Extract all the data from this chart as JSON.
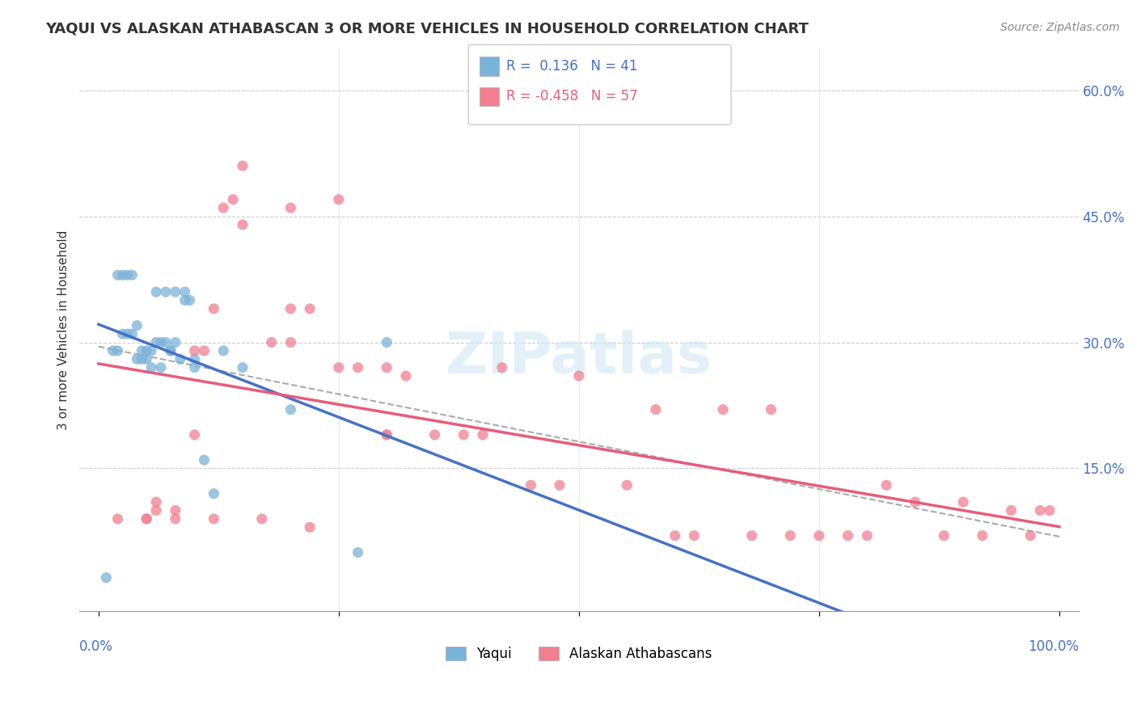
{
  "title": "YAQUI VS ALASKAN ATHABASCAN 3 OR MORE VEHICLES IN HOUSEHOLD CORRELATION CHART",
  "source": "Source: ZipAtlas.com",
  "ylabel": "3 or more Vehicles in Household",
  "yticks": [
    0.0,
    0.15,
    0.3,
    0.45,
    0.6
  ],
  "ytick_labels": [
    "",
    "15.0%",
    "30.0%",
    "45.0%",
    "60.0%"
  ],
  "yaqui_R": 0.136,
  "yaqui_N": 41,
  "athabascan_R": -0.458,
  "athabascan_N": 57,
  "yaqui_color": "#7ab3d9",
  "athabascan_color": "#f08090",
  "watermark_color": "#d0e8f5",
  "background_color": "#ffffff",
  "yaqui_x": [
    0.8,
    1.5,
    2.0,
    2.5,
    3.0,
    3.5,
    4.0,
    4.5,
    5.0,
    5.5,
    6.0,
    6.5,
    7.0,
    7.5,
    8.0,
    8.5,
    9.0,
    9.5,
    10.0,
    11.0,
    12.0,
    13.0,
    15.0,
    20.0,
    30.0,
    2.0,
    3.0,
    4.0,
    5.0,
    6.0,
    7.0,
    8.0,
    9.0,
    10.0,
    2.5,
    3.5,
    4.5,
    5.5,
    6.5,
    7.5,
    27.0
  ],
  "yaqui_y": [
    2.0,
    29.0,
    29.0,
    31.0,
    31.0,
    31.0,
    32.0,
    29.0,
    29.0,
    29.0,
    30.0,
    30.0,
    30.0,
    29.0,
    30.0,
    28.0,
    35.0,
    35.0,
    28.0,
    16.0,
    12.0,
    29.0,
    27.0,
    22.0,
    30.0,
    38.0,
    38.0,
    28.0,
    28.0,
    36.0,
    36.0,
    36.0,
    36.0,
    27.0,
    38.0,
    38.0,
    28.0,
    27.0,
    27.0,
    29.0,
    5.0
  ],
  "athabascan_x": [
    2.0,
    5.0,
    6.0,
    6.0,
    8.0,
    10.0,
    11.0,
    12.0,
    13.0,
    14.0,
    15.0,
    18.0,
    20.0,
    20.0,
    22.0,
    25.0,
    27.0,
    30.0,
    30.0,
    32.0,
    35.0,
    38.0,
    40.0,
    42.0,
    45.0,
    48.0,
    50.0,
    55.0,
    58.0,
    60.0,
    62.0,
    65.0,
    68.0,
    70.0,
    72.0,
    75.0,
    78.0,
    80.0,
    82.0,
    85.0,
    88.0,
    90.0,
    92.0,
    95.0,
    97.0,
    98.0,
    99.0,
    15.0,
    20.0,
    25.0,
    30.0,
    10.0,
    8.0,
    5.0,
    12.0,
    17.0,
    22.0
  ],
  "athabascan_y": [
    9.0,
    9.0,
    11.0,
    10.0,
    10.0,
    29.0,
    29.0,
    34.0,
    46.0,
    47.0,
    44.0,
    30.0,
    30.0,
    34.0,
    34.0,
    27.0,
    27.0,
    19.0,
    27.0,
    26.0,
    19.0,
    19.0,
    19.0,
    27.0,
    13.0,
    13.0,
    26.0,
    13.0,
    22.0,
    7.0,
    7.0,
    22.0,
    7.0,
    22.0,
    7.0,
    7.0,
    7.0,
    7.0,
    13.0,
    11.0,
    7.0,
    11.0,
    7.0,
    10.0,
    7.0,
    10.0,
    10.0,
    51.0,
    46.0,
    47.0,
    19.0,
    19.0,
    9.0,
    9.0,
    9.0,
    9.0,
    8.0
  ]
}
